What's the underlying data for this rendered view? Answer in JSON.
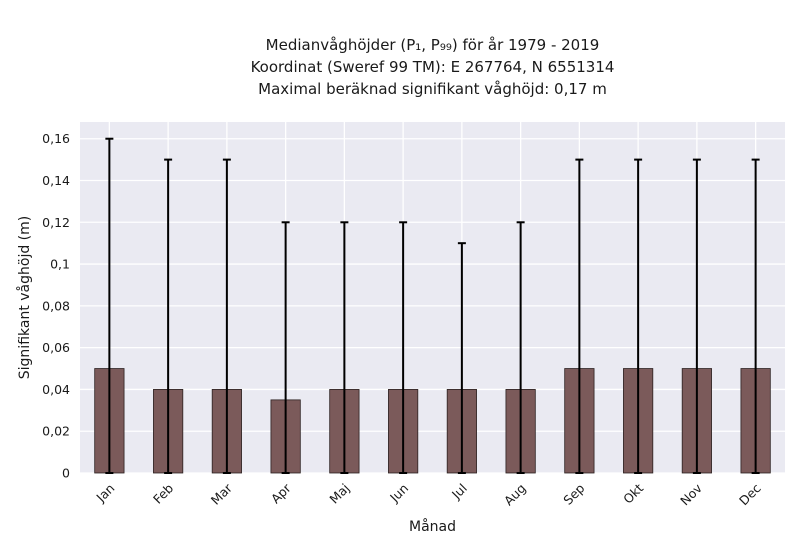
{
  "chart_data": {
    "type": "bar",
    "title_lines": [
      "Medianvåghöjder (P₁, P₉₉) för år 1979 - 2019",
      "Koordinat (Sweref 99 TM): E 267764, N 6551314",
      "Maximal beräknad signifikant våghöjd: 0,17 m"
    ],
    "xlabel": "Månad",
    "ylabel": "Signifikant våghöjd (m)",
    "categories": [
      "Jan",
      "Feb",
      "Mar",
      "Apr",
      "Maj",
      "Jun",
      "Jul",
      "Aug",
      "Sep",
      "Okt",
      "Nov",
      "Dec"
    ],
    "values": [
      0.05,
      0.04,
      0.04,
      0.035,
      0.04,
      0.04,
      0.04,
      0.04,
      0.05,
      0.05,
      0.05,
      0.05
    ],
    "error_low": [
      0,
      0,
      0,
      0,
      0,
      0,
      0,
      0,
      0,
      0,
      0,
      0
    ],
    "error_high": [
      0.16,
      0.15,
      0.15,
      0.12,
      0.12,
      0.12,
      0.11,
      0.12,
      0.15,
      0.15,
      0.15,
      0.15
    ],
    "ylim": [
      0,
      0.168
    ],
    "yticks": [
      0,
      0.02,
      0.04,
      0.06,
      0.08,
      0.1,
      0.12,
      0.14,
      0.16
    ],
    "ytick_labels": [
      "0",
      "0,02",
      "0,04",
      "0,06",
      "0,08",
      "0,1",
      "0,12",
      "0,14",
      "0,16"
    ],
    "grid": true,
    "colors": {
      "bar_fill": "#7b5a5a",
      "bar_edge": "#2b2020",
      "errorbar": "#000000",
      "plot_background": "#eaeaf2",
      "grid": "#ffffff"
    }
  }
}
